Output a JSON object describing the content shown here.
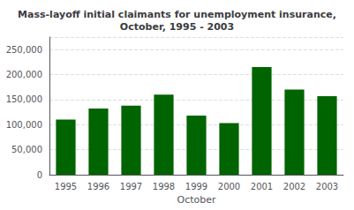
{
  "chart_data": {
    "type": "bar",
    "title": "Mass-layoff initial claimants for unemployment insurance,\nOctober, 1995 - 2003",
    "xlabel": "October",
    "categories": [
      "1995",
      "1996",
      "1997",
      "1998",
      "1999",
      "2000",
      "2001",
      "2002",
      "2003"
    ],
    "values": [
      110000,
      132000,
      138000,
      160000,
      118000,
      103000,
      215000,
      170000,
      157000
    ],
    "color": "#006400",
    "ylim": [
      0,
      275000
    ],
    "yticks": [
      0,
      {
        "value": 50000,
        "label": "50,000"
      },
      {
        "value": 100000,
        "label": "100,000"
      },
      {
        "value": 150000,
        "label": "150,000"
      },
      {
        "value": 200000,
        "label": "200,000"
      },
      {
        "value": 250000,
        "label": "250,000"
      }
    ],
    "grid": true
  }
}
